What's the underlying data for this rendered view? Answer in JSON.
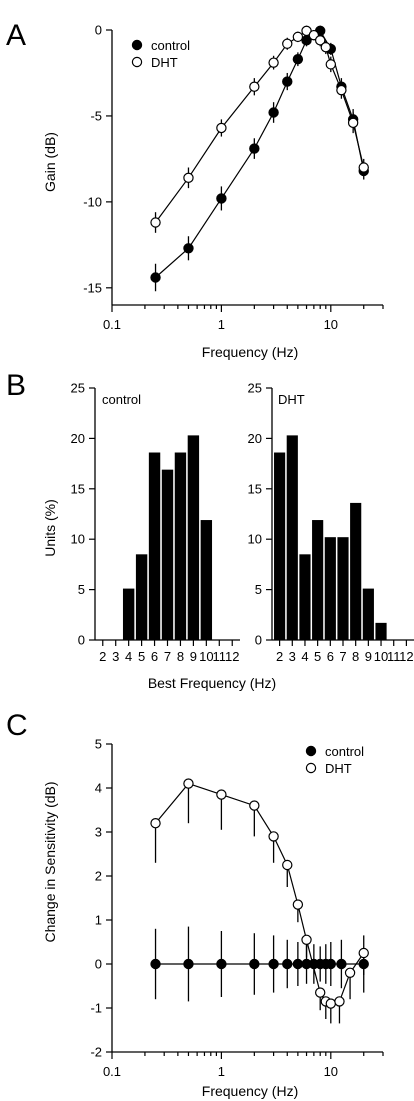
{
  "chart_data": [
    {
      "panel": "A",
      "type": "line",
      "xlabel": "Frequency (Hz)",
      "ylabel": "Gain (dB)",
      "xscale": "log",
      "xlim": [
        0.1,
        30
      ],
      "ylim": [
        -16,
        0
      ],
      "xticks": [
        "0.1",
        "1",
        "10"
      ],
      "yticks": [
        "0",
        "-5",
        "-10",
        "-15"
      ],
      "legend": "top-left",
      "series": [
        {
          "name": "control",
          "marker": "filled",
          "x": [
            0.25,
            0.5,
            1,
            2,
            3,
            4,
            5,
            6,
            8,
            10,
            12.5,
            16,
            20
          ],
          "y": [
            -14.4,
            -12.7,
            -9.8,
            -6.9,
            -4.8,
            -3.0,
            -1.7,
            -0.6,
            -0.05,
            -1.1,
            -3.3,
            -5.2,
            -8.2
          ],
          "err": [
            0.8,
            0.7,
            0.7,
            0.6,
            0.6,
            0.5,
            0.4,
            0.35,
            0.3,
            0.35,
            0.5,
            0.6,
            0.5
          ]
        },
        {
          "name": "DHT",
          "marker": "open",
          "x": [
            0.25,
            0.5,
            1,
            2,
            3,
            4,
            5,
            6,
            7,
            8,
            9,
            10,
            12.5,
            16,
            20
          ],
          "y": [
            -11.2,
            -8.6,
            -5.7,
            -3.3,
            -1.9,
            -0.8,
            -0.4,
            -0.05,
            -0.3,
            -0.6,
            -1.0,
            -2.0,
            -3.5,
            -5.4,
            -8.0
          ],
          "err": [
            0.6,
            0.6,
            0.5,
            0.5,
            0.4,
            0.35,
            0.3,
            0.3,
            0.3,
            0.35,
            0.4,
            0.45,
            0.5,
            0.6,
            0.5
          ]
        }
      ]
    },
    {
      "panel": "B",
      "type": "bar",
      "subplots": [
        {
          "label": "control",
          "categories": [
            2,
            3,
            4,
            5,
            6,
            7,
            8,
            9,
            10,
            11,
            12
          ],
          "values": [
            0,
            0,
            5.1,
            8.5,
            18.6,
            16.9,
            18.6,
            20.3,
            11.9,
            0,
            0
          ]
        },
        {
          "label": "DHT",
          "categories": [
            2,
            3,
            4,
            5,
            6,
            7,
            8,
            9,
            10,
            11,
            12
          ],
          "values": [
            18.6,
            20.3,
            8.5,
            11.9,
            10.2,
            10.2,
            13.6,
            5.1,
            1.7,
            0,
            0
          ]
        }
      ],
      "xlabel": "Best Frequency (Hz)",
      "ylabel": "Units (%)",
      "ylim": [
        0,
        25
      ],
      "yticks": [
        "0",
        "5",
        "10",
        "15",
        "20",
        "25"
      ],
      "xticks": [
        "2",
        "3",
        "4",
        "5",
        "6",
        "7",
        "8",
        "9",
        "10",
        "11",
        "12"
      ]
    },
    {
      "panel": "C",
      "type": "line",
      "xlabel": "Frequency (Hz)",
      "ylabel": "Change in Sensitivity (dB)",
      "xscale": "log",
      "xlim": [
        0.1,
        30
      ],
      "ylim": [
        -2,
        5
      ],
      "xticks": [
        "0.1",
        "1",
        "10"
      ],
      "yticks": [
        "5",
        "4",
        "3",
        "2",
        "1",
        "0",
        "-1",
        "-2"
      ],
      "legend": "top-right",
      "series": [
        {
          "name": "control",
          "marker": "filled",
          "x": [
            0.25,
            0.5,
            1,
            2,
            3,
            4,
            5,
            6,
            7,
            8,
            9,
            10,
            12.5,
            20
          ],
          "y": [
            0,
            0,
            0,
            0,
            0,
            0,
            0,
            0,
            0,
            0,
            0,
            0,
            0,
            0
          ],
          "err": [
            0.8,
            0.85,
            0.75,
            0.7,
            0.65,
            0.55,
            0.5,
            0.45,
            0.45,
            0.4,
            0.45,
            0.5,
            0.55,
            0.65
          ]
        },
        {
          "name": "DHT",
          "marker": "open",
          "x": [
            0.25,
            0.5,
            1,
            2,
            3,
            4,
            5,
            6,
            8,
            9,
            10,
            12,
            15,
            20
          ],
          "y": [
            3.2,
            4.1,
            3.85,
            3.6,
            2.9,
            2.25,
            1.35,
            0.55,
            -0.65,
            -0.85,
            -0.9,
            -0.85,
            -0.2,
            0.25
          ],
          "err": [
            0.9,
            0.9,
            0.8,
            0.7,
            0.6,
            0.5,
            0.4,
            0.4,
            0.4,
            0.4,
            0.45,
            0.5,
            0.6,
            0.5
          ],
          "err_dir": "down"
        }
      ]
    }
  ],
  "labels": {
    "panel_a": "A",
    "panel_b": "B",
    "panel_c": "C",
    "a_xlabel": "Frequency (Hz)",
    "a_ylabel": "Gain (dB)",
    "a_legend_control": "control",
    "a_legend_dht": "DHT",
    "b_left_label": "control",
    "b_right_label": "DHT",
    "b_xlabel": "Best Frequency (Hz)",
    "b_ylabel": "Units (%)",
    "c_xlabel": "Frequency (Hz)",
    "c_ylabel": "Change in Sensitivity (dB)",
    "c_legend_control": "control",
    "c_legend_dht": "DHT"
  }
}
